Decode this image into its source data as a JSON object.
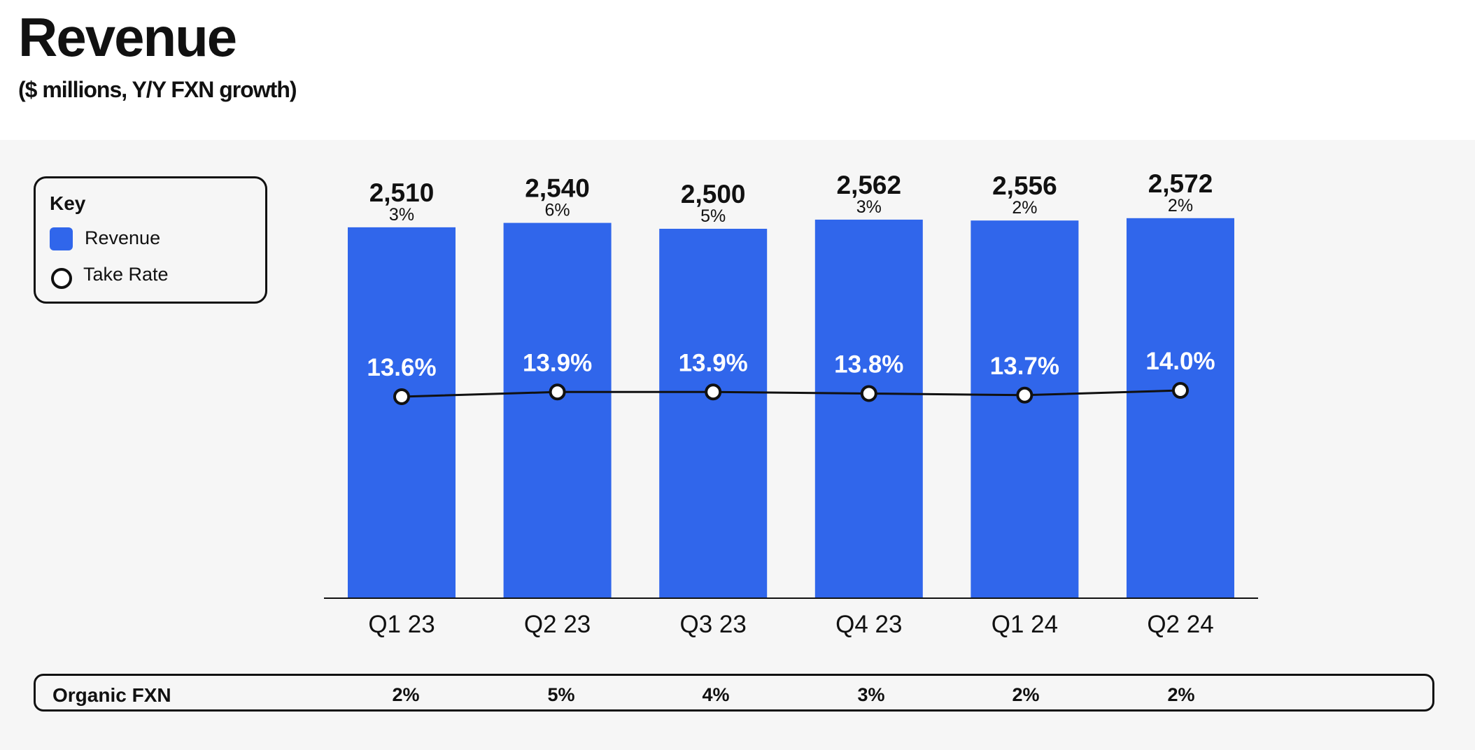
{
  "header": {
    "title": "Revenue",
    "subtitle": "($ millions, Y/Y FXN growth)"
  },
  "legend": {
    "title": "Key",
    "items": [
      {
        "label": "Revenue",
        "icon": "square-swatch-icon",
        "color": "#3066eb"
      },
      {
        "label": "Take Rate",
        "icon": "circle-marker-icon",
        "color": "#111111"
      }
    ]
  },
  "chart_data": {
    "type": "bar",
    "categories": [
      "Q1 23",
      "Q2 23",
      "Q3 23",
      "Q4 23",
      "Q1 24",
      "Q2 24"
    ],
    "series": [
      {
        "name": "Revenue",
        "values": [
          2510,
          2540,
          2500,
          2562,
          2556,
          2572
        ],
        "value_labels": [
          "2,510",
          "2,540",
          "2,500",
          "2,562",
          "2,556",
          "2,572"
        ],
        "growth_labels": [
          "3%",
          "6%",
          "5%",
          "3%",
          "2%",
          "2%"
        ],
        "color": "#3066eb"
      },
      {
        "name": "Take Rate",
        "type": "line",
        "values": [
          13.6,
          13.9,
          13.9,
          13.8,
          13.7,
          14.0
        ],
        "value_labels": [
          "13.6%",
          "13.9%",
          "13.9%",
          "13.8%",
          "13.7%",
          "14.0%"
        ],
        "color": "#111111"
      }
    ],
    "title": "Revenue",
    "subtitle": "($ millions, Y/Y FXN growth)",
    "ylim": [
      0,
      2600
    ],
    "grid": false,
    "legend_position": "top-left"
  },
  "organic": {
    "label": "Organic FXN",
    "values": [
      "2%",
      "5%",
      "4%",
      "3%",
      "2%",
      "2%"
    ]
  }
}
